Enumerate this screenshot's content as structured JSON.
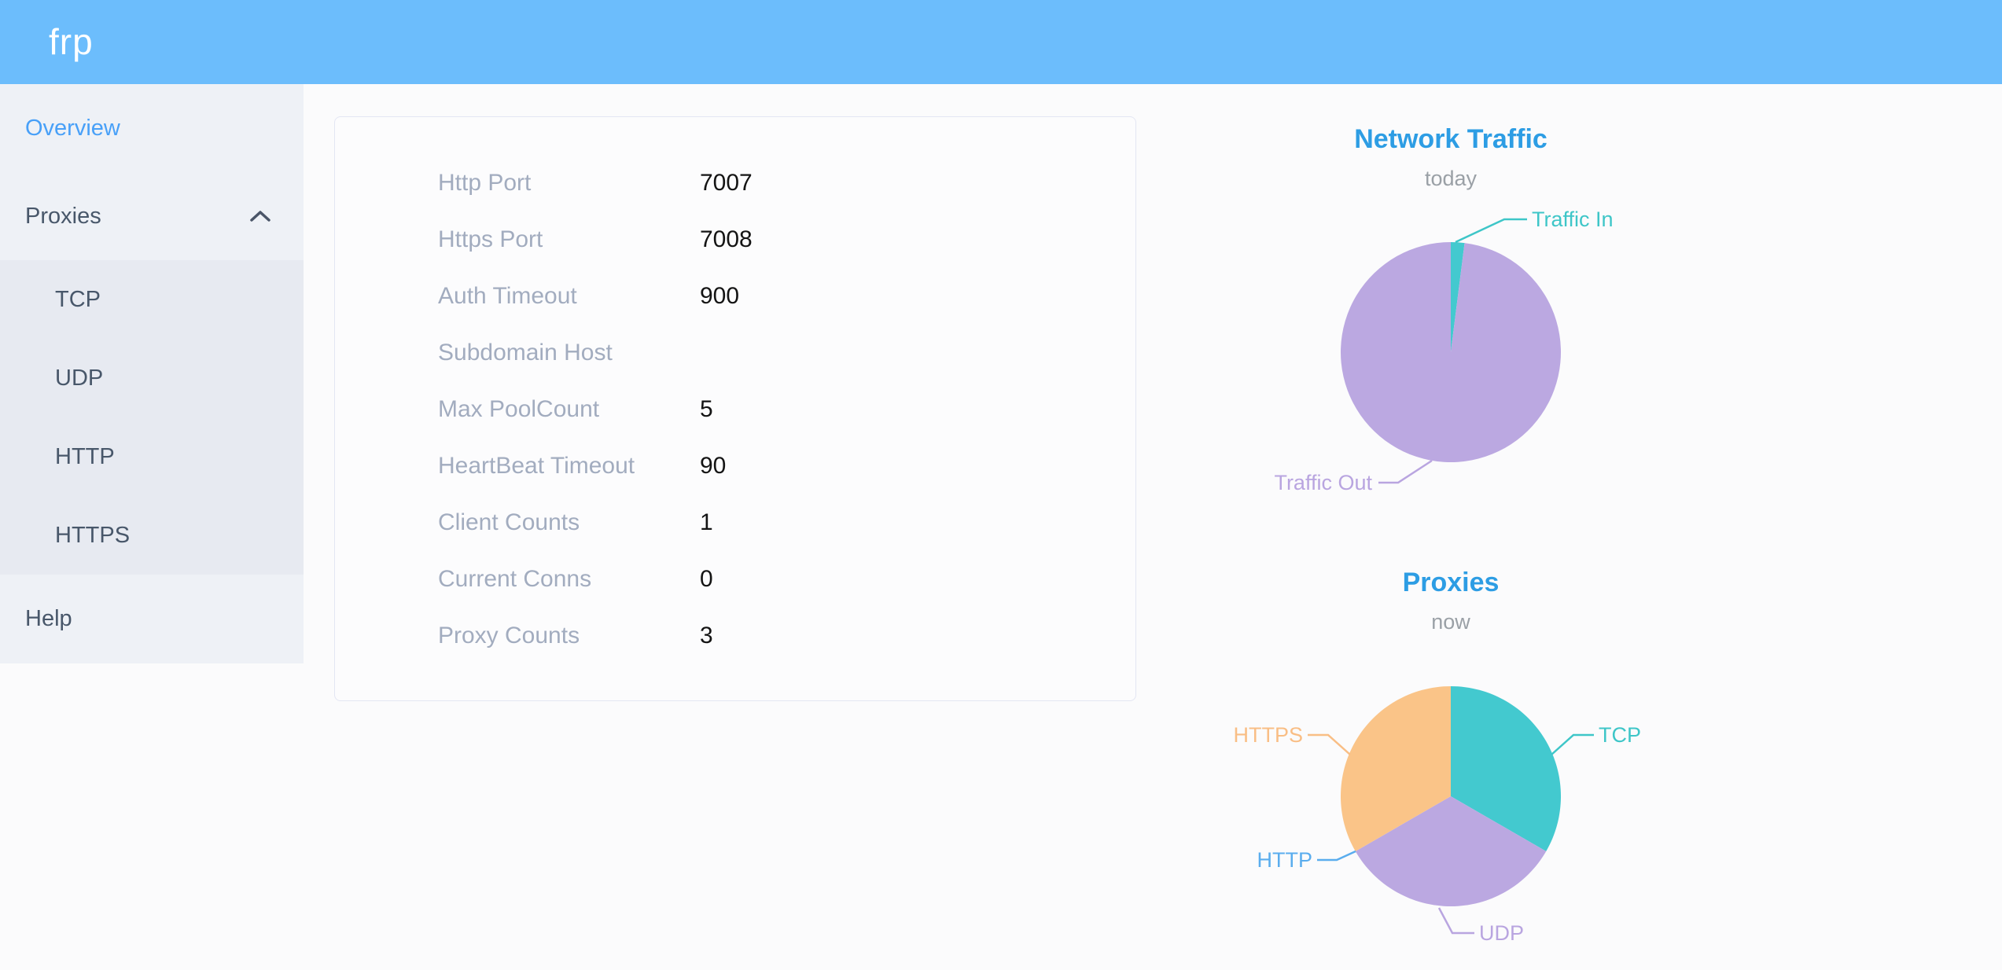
{
  "header": {
    "logo": "frp",
    "background": "#6cbdfc"
  },
  "sidebar": {
    "background": "#eef1f6",
    "submenu_background": "#e7eaf1",
    "active_color": "#48a0f8",
    "item_color": "#48576a",
    "items": [
      {
        "label": "Overview",
        "active": true
      },
      {
        "label": "Proxies",
        "expanded": true
      },
      {
        "label": "TCP",
        "submenu_of": "Proxies"
      },
      {
        "label": "UDP",
        "submenu_of": "Proxies"
      },
      {
        "label": "HTTP",
        "submenu_of": "Proxies"
      },
      {
        "label": "HTTPS",
        "submenu_of": "Proxies"
      },
      {
        "label": "Help"
      }
    ]
  },
  "overview_card": {
    "rows": [
      {
        "label": "Http Port",
        "value": "7007"
      },
      {
        "label": "Https Port",
        "value": "7008"
      },
      {
        "label": "Auth Timeout",
        "value": "900"
      },
      {
        "label": "Subdomain Host",
        "value": ""
      },
      {
        "label": "Max PoolCount",
        "value": "5"
      },
      {
        "label": "HeartBeat Timeout",
        "value": "90"
      },
      {
        "label": "Client Counts",
        "value": "1"
      },
      {
        "label": "Current Conns",
        "value": "0"
      },
      {
        "label": "Proxy Counts",
        "value": "3"
      }
    ]
  },
  "chart_data": [
    {
      "type": "pie",
      "title": "Network Traffic",
      "subtitle": "today",
      "legend_position": "callout-labels",
      "unit": "percent of total, estimated from slice angles",
      "series": [
        {
          "name": "Traffic In",
          "value": 2,
          "color": "#43c9cf",
          "label_color": "#3ec6c8"
        },
        {
          "name": "Traffic Out",
          "value": 98,
          "color": "#bba8e1",
          "label_color": "#b9a5e0"
        }
      ]
    },
    {
      "type": "pie",
      "title": "Proxies",
      "subtitle": "now",
      "legend_position": "callout-labels",
      "unit": "proxy count (total 3)",
      "series": [
        {
          "name": "TCP",
          "value": 1,
          "color": "#43c9cf",
          "label_color": "#3ec6c8"
        },
        {
          "name": "UDP",
          "value": 1,
          "color": "#bba8e1",
          "label_color": "#b9a5e0"
        },
        {
          "name": "HTTP",
          "value": 0,
          "color": "#5aadee",
          "label_color": "#5aadee"
        },
        {
          "name": "HTTPS",
          "value": 1,
          "color": "#fac488",
          "label_color": "#f9be85"
        }
      ]
    }
  ]
}
